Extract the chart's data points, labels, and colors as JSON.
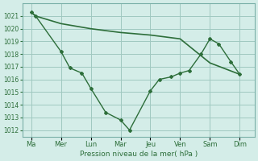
{
  "background_color": "#d4ede8",
  "grid_color": "#a0c8c0",
  "line_color": "#2d6e3a",
  "xlabel": "Pression niveau de la mer( hPa )",
  "ylim": [
    1011.5,
    1022.0
  ],
  "yticks": [
    1012,
    1013,
    1014,
    1015,
    1016,
    1017,
    1018,
    1019,
    1020,
    1021
  ],
  "x_labels": [
    "Ma",
    "Mer",
    "Lun",
    "Mar",
    "Jeu",
    "Ven",
    "Sam",
    "Dim"
  ],
  "x_positions": [
    0,
    1,
    2,
    3,
    4,
    5,
    6,
    7
  ],
  "smooth_line": {
    "x": [
      0,
      0.15,
      1,
      2,
      3,
      4,
      5,
      6,
      7
    ],
    "y": [
      1021.3,
      1021.0,
      1020.4,
      1020.0,
      1019.7,
      1019.5,
      1019.2,
      1017.3,
      1016.4
    ]
  },
  "marker_line": {
    "x": [
      0,
      0.15,
      1,
      1.3,
      1.7,
      2,
      2.5,
      3,
      3.3,
      4,
      4.3,
      4.7,
      5,
      5.3,
      5.7,
      6,
      6.3,
      6.7,
      7
    ],
    "y": [
      1021.3,
      1021.0,
      1018.2,
      1016.9,
      1016.5,
      1015.3,
      1013.4,
      1012.8,
      1012.0,
      1015.1,
      1016.0,
      1016.2,
      1016.5,
      1016.7,
      1018.0,
      1019.2,
      1018.8,
      1017.4,
      1016.4
    ]
  }
}
